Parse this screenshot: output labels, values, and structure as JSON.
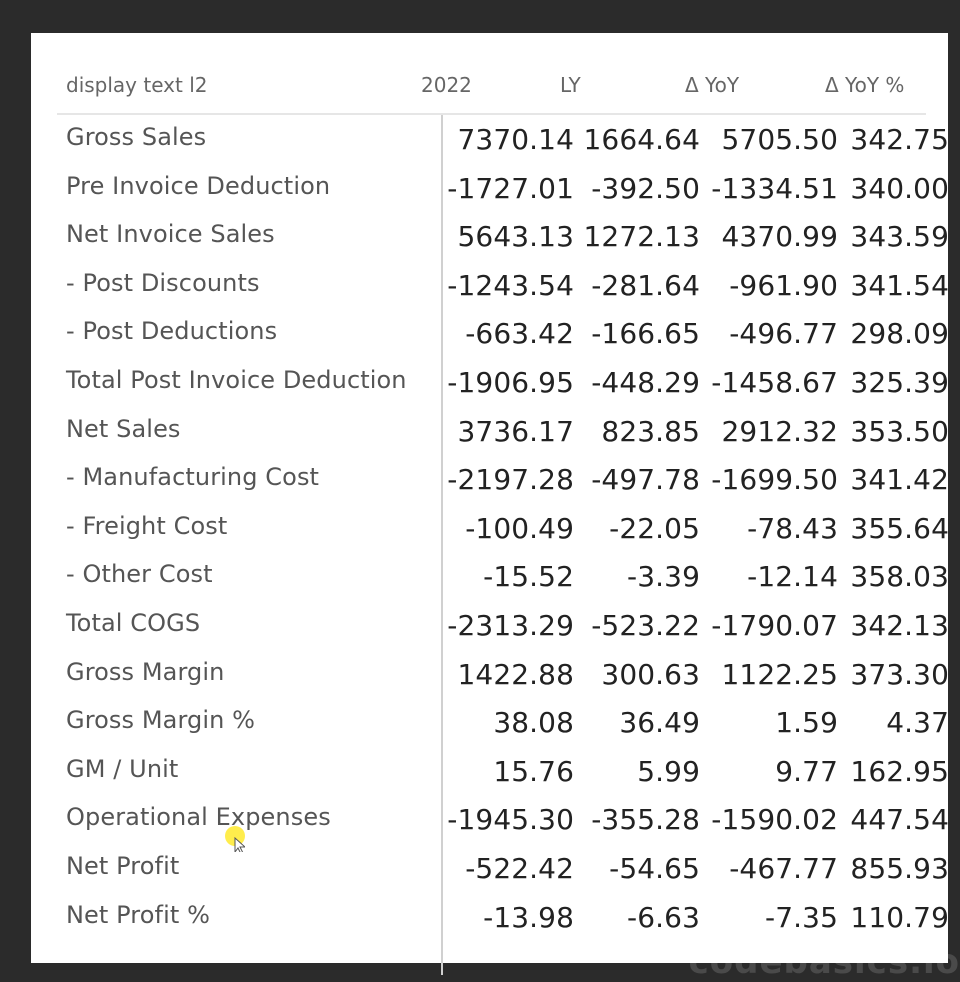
{
  "table": {
    "headers": [
      "display text l2",
      "2022",
      "LY",
      "Δ YoY",
      "Δ YoY %"
    ],
    "rows": [
      {
        "label": "Gross Sales",
        "v2022": "7370.14",
        "ly": "1664.64",
        "yoy": "5705.50",
        "yoy_pct": "342.75"
      },
      {
        "label": "Pre Invoice Deduction",
        "v2022": "-1727.01",
        "ly": "-392.50",
        "yoy": "-1334.51",
        "yoy_pct": "340.00"
      },
      {
        "label": "Net Invoice Sales",
        "v2022": "5643.13",
        "ly": "1272.13",
        "yoy": "4370.99",
        "yoy_pct": "343.59"
      },
      {
        "label": "- Post Discounts",
        "v2022": "-1243.54",
        "ly": "-281.64",
        "yoy": "-961.90",
        "yoy_pct": "341.54"
      },
      {
        "label": "- Post Deductions",
        "v2022": "-663.42",
        "ly": "-166.65",
        "yoy": "-496.77",
        "yoy_pct": "298.09"
      },
      {
        "label": "Total Post Invoice Deduction",
        "v2022": "-1906.95",
        "ly": "-448.29",
        "yoy": "-1458.67",
        "yoy_pct": "325.39"
      },
      {
        "label": "Net Sales",
        "v2022": "3736.17",
        "ly": "823.85",
        "yoy": "2912.32",
        "yoy_pct": "353.50"
      },
      {
        "label": "- Manufacturing Cost",
        "v2022": "-2197.28",
        "ly": "-497.78",
        "yoy": "-1699.50",
        "yoy_pct": "341.42"
      },
      {
        "label": "- Freight Cost",
        "v2022": "-100.49",
        "ly": "-22.05",
        "yoy": "-78.43",
        "yoy_pct": "355.64"
      },
      {
        "label": "- Other Cost",
        "v2022": "-15.52",
        "ly": "-3.39",
        "yoy": "-12.14",
        "yoy_pct": "358.03"
      },
      {
        "label": "Total COGS",
        "v2022": "-2313.29",
        "ly": "-523.22",
        "yoy": "-1790.07",
        "yoy_pct": "342.13"
      },
      {
        "label": "Gross Margin",
        "v2022": "1422.88",
        "ly": "300.63",
        "yoy": "1122.25",
        "yoy_pct": "373.30"
      },
      {
        "label": "Gross Margin %",
        "v2022": "38.08",
        "ly": "36.49",
        "yoy": "1.59",
        "yoy_pct": "4.37"
      },
      {
        "label": "GM / Unit",
        "v2022": "15.76",
        "ly": "5.99",
        "yoy": "9.77",
        "yoy_pct": "162.95"
      },
      {
        "label": "Operational Expenses",
        "v2022": "-1945.30",
        "ly": "-355.28",
        "yoy": "-1590.02",
        "yoy_pct": "447.54"
      },
      {
        "label": "Net Profit",
        "v2022": "-522.42",
        "ly": "-54.65",
        "yoy": "-467.77",
        "yoy_pct": "855.93"
      },
      {
        "label": "Net Profit %",
        "v2022": "-13.98",
        "ly": "-6.63",
        "yoy": "-7.35",
        "yoy_pct": "110.79"
      }
    ]
  },
  "watermark": "codebasics.io"
}
